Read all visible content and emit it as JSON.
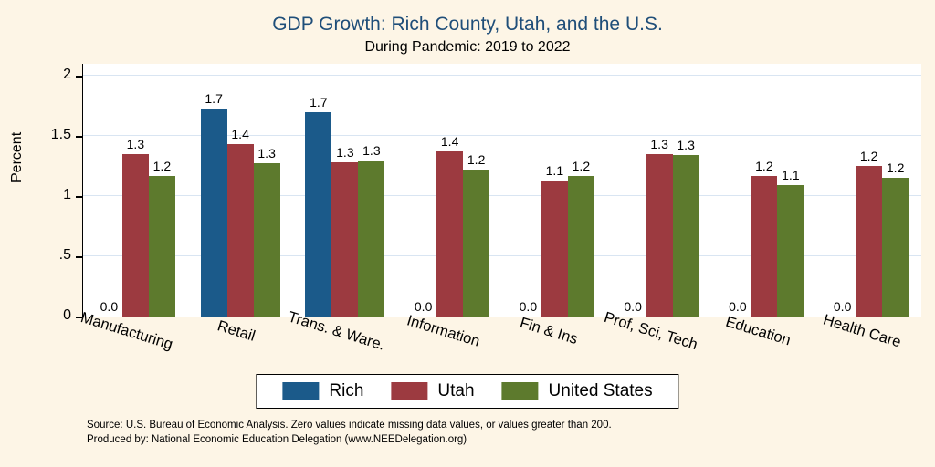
{
  "chart_data": {
    "type": "bar",
    "title": "GDP Growth: Rich County, Utah, and the U.S.",
    "subtitle": "During Pandemic: 2019 to 2022",
    "ylabel": "Percent",
    "ylim": [
      0,
      2.1
    ],
    "grid": true,
    "legend_position": "bottom",
    "yticks": [
      {
        "value": 0,
        "label": "0"
      },
      {
        "value": 0.5,
        "label": ".5"
      },
      {
        "value": 1,
        "label": "1"
      },
      {
        "value": 1.5,
        "label": "1.5"
      },
      {
        "value": 2,
        "label": "2"
      }
    ],
    "categories": [
      "Manufacturing",
      "Retail",
      "Trans. & Ware.",
      "Information",
      "Fin & Ins",
      "Prof, Sci, Tech",
      "Education",
      "Health Care"
    ],
    "series": [
      {
        "name": "Rich",
        "color": "#1b5a8a",
        "values": [
          0.0,
          1.7,
          1.7,
          0.0,
          0.0,
          0.0,
          0.0,
          0.0
        ],
        "bar_heights": [
          0,
          1.73,
          1.7,
          0,
          0,
          0,
          0,
          0
        ]
      },
      {
        "name": "Utah",
        "color": "#9c3a40",
        "values": [
          1.3,
          1.4,
          1.3,
          1.4,
          1.1,
          1.3,
          1.2,
          1.2
        ],
        "bar_heights": [
          1.35,
          1.43,
          1.28,
          1.37,
          1.13,
          1.35,
          1.17,
          1.25
        ]
      },
      {
        "name": "United States",
        "color": "#5d7a2d",
        "values": [
          1.2,
          1.3,
          1.3,
          1.2,
          1.2,
          1.3,
          1.1,
          1.2
        ],
        "bar_heights": [
          1.17,
          1.27,
          1.3,
          1.22,
          1.17,
          1.34,
          1.09,
          1.15
        ]
      }
    ],
    "notes": [
      "Source: U.S. Bureau of Economic Analysis. Zero values indicate missing data values, or values greater than 200.",
      "Produced by: National Economic Education Delegation (www.NEEDelegation.org)"
    ]
  }
}
